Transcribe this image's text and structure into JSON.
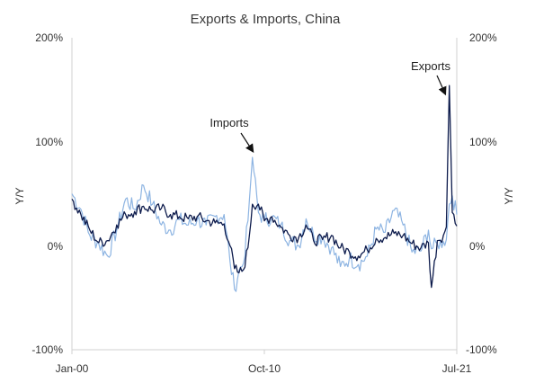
{
  "chart_data": {
    "type": "line",
    "title": "Exports & Imports, China",
    "ylabel_left": "Y/Y",
    "ylabel_right": "Y/Y",
    "x_ticks": [
      "Jan-00",
      "Oct-10",
      "Jul-21"
    ],
    "x_range": [
      "2000-01",
      "2021-07"
    ],
    "y_ticks": [
      "200%",
      "100%",
      "0%",
      "-100%"
    ],
    "ylim": [
      -100,
      200
    ],
    "grid": false,
    "legend": "none",
    "series": [
      {
        "name": "Exports",
        "color": "#0d1b4c",
        "points": [
          [
            "2000-01",
            45
          ],
          [
            "2000-07",
            30
          ],
          [
            "2001-01",
            15
          ],
          [
            "2001-07",
            3
          ],
          [
            "2002-01",
            5
          ],
          [
            "2002-07",
            20
          ],
          [
            "2003-01",
            30
          ],
          [
            "2003-07",
            33
          ],
          [
            "2004-01",
            38
          ],
          [
            "2004-07",
            34
          ],
          [
            "2005-01",
            36
          ],
          [
            "2005-07",
            30
          ],
          [
            "2006-01",
            28
          ],
          [
            "2006-07",
            26
          ],
          [
            "2007-01",
            28
          ],
          [
            "2007-07",
            24
          ],
          [
            "2008-01",
            22
          ],
          [
            "2008-07",
            21
          ],
          [
            "2008-11",
            0
          ],
          [
            "2009-02",
            -22
          ],
          [
            "2009-05",
            -26
          ],
          [
            "2009-08",
            -23
          ],
          [
            "2009-11",
            -2
          ],
          [
            "2010-02",
            40
          ],
          [
            "2010-06",
            40
          ],
          [
            "2010-10",
            24
          ],
          [
            "2011-03",
            28
          ],
          [
            "2011-09",
            18
          ],
          [
            "2012-03",
            10
          ],
          [
            "2012-09",
            8
          ],
          [
            "2013-02",
            20
          ],
          [
            "2013-07",
            5
          ],
          [
            "2014-01",
            6
          ],
          [
            "2014-07",
            10
          ],
          [
            "2015-01",
            -2
          ],
          [
            "2015-07",
            -6
          ],
          [
            "2016-01",
            -10
          ],
          [
            "2016-07",
            -4
          ],
          [
            "2017-01",
            7
          ],
          [
            "2017-07",
            8
          ],
          [
            "2018-01",
            12
          ],
          [
            "2018-07",
            10
          ],
          [
            "2019-01",
            2
          ],
          [
            "2019-07",
            -2
          ],
          [
            "2019-12",
            3
          ],
          [
            "2020-02",
            -40
          ],
          [
            "2020-06",
            5
          ],
          [
            "2020-10",
            10
          ],
          [
            "2020-12",
            18
          ],
          [
            "2021-02",
            154
          ],
          [
            "2021-04",
            32
          ],
          [
            "2021-07",
            19
          ]
        ]
      },
      {
        "name": "Imports",
        "color": "#8db4e2",
        "points": [
          [
            "2000-01",
            50
          ],
          [
            "2000-07",
            35
          ],
          [
            "2001-01",
            10
          ],
          [
            "2001-07",
            2
          ],
          [
            "2002-01",
            -10
          ],
          [
            "2002-07",
            15
          ],
          [
            "2003-01",
            45
          ],
          [
            "2003-07",
            35
          ],
          [
            "2004-01",
            58
          ],
          [
            "2004-07",
            40
          ],
          [
            "2005-01",
            20
          ],
          [
            "2005-07",
            15
          ],
          [
            "2006-01",
            25
          ],
          [
            "2006-07",
            20
          ],
          [
            "2007-01",
            25
          ],
          [
            "2007-07",
            20
          ],
          [
            "2008-01",
            28
          ],
          [
            "2008-07",
            30
          ],
          [
            "2008-11",
            -15
          ],
          [
            "2009-02",
            -42
          ],
          [
            "2009-05",
            -24
          ],
          [
            "2009-08",
            -17
          ],
          [
            "2009-11",
            24
          ],
          [
            "2010-02",
            85
          ],
          [
            "2010-06",
            32
          ],
          [
            "2010-10",
            25
          ],
          [
            "2011-03",
            27
          ],
          [
            "2011-09",
            20
          ],
          [
            "2012-03",
            5
          ],
          [
            "2012-09",
            0
          ],
          [
            "2013-02",
            26
          ],
          [
            "2013-07",
            10
          ],
          [
            "2014-01",
            8
          ],
          [
            "2014-07",
            -2
          ],
          [
            "2015-01",
            -20
          ],
          [
            "2015-07",
            -12
          ],
          [
            "2016-01",
            -18
          ],
          [
            "2016-07",
            -10
          ],
          [
            "2017-01",
            16
          ],
          [
            "2017-07",
            13
          ],
          [
            "2018-01",
            34
          ],
          [
            "2018-07",
            20
          ],
          [
            "2019-01",
            -6
          ],
          [
            "2019-07",
            -5
          ],
          [
            "2019-12",
            15
          ],
          [
            "2020-02",
            -3
          ],
          [
            "2020-06",
            2
          ],
          [
            "2020-10",
            4
          ],
          [
            "2020-12",
            6
          ],
          [
            "2021-02",
            40
          ],
          [
            "2021-04",
            48
          ],
          [
            "2021-07",
            30
          ]
        ]
      }
    ],
    "annotations": [
      {
        "text": "Imports",
        "series": "Imports",
        "x": "2010-02",
        "y": 85
      },
      {
        "text": "Exports",
        "series": "Exports",
        "x": "2021-02",
        "y": 154
      }
    ]
  }
}
